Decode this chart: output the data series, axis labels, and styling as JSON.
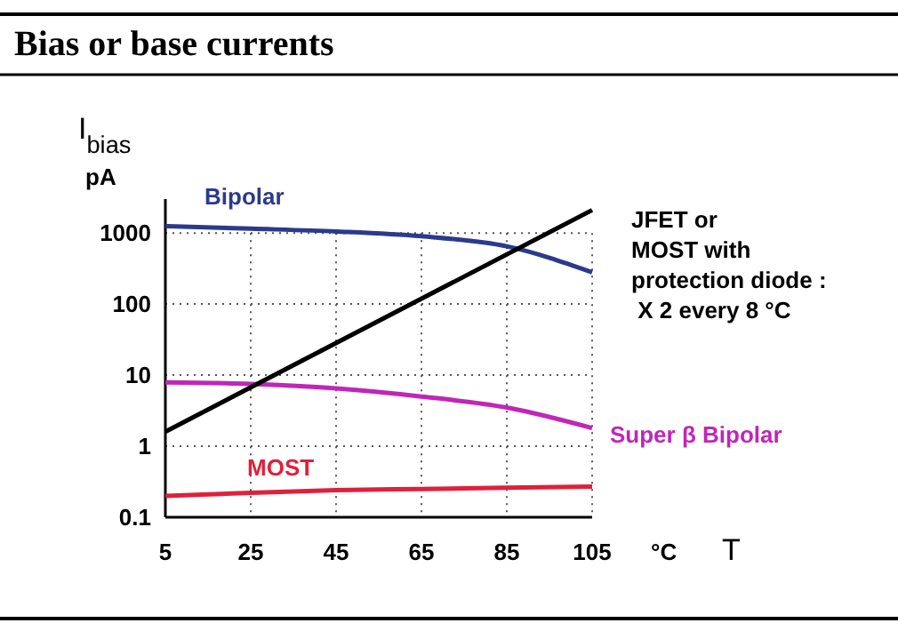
{
  "chart_data": {
    "type": "line",
    "title": "Bias or base currents",
    "ylabel": "I$_{bias}$\npA",
    "xlabel": "°C T",
    "x": [
      5,
      25,
      45,
      65,
      85,
      105
    ],
    "xlim": [
      5,
      105
    ],
    "xticks": [
      5,
      25,
      45,
      65,
      85,
      105
    ],
    "ylim": [
      0.1,
      3000
    ],
    "yticks": [
      0.1,
      1,
      10,
      100,
      1000
    ],
    "log": true,
    "grid": true,
    "marker": "none",
    "line_style": "solid",
    "series": [
      {
        "name": "Bipolar",
        "color": "#2b3a8c",
        "values": [
          1250,
          1150,
          1050,
          900,
          650,
          280
        ]
      },
      {
        "name": "Super β Bipolar",
        "color": "#c026b8",
        "values": [
          7.9,
          7.5,
          6.5,
          5,
          3.5,
          1.8
        ]
      },
      {
        "name": "MOST",
        "color": "#e0203a",
        "values": [
          0.2,
          0.22,
          0.24,
          0.25,
          0.26,
          0.27
        ]
      },
      {
        "name": "JFET or\nMOST with\nprotection diode :\n X 2 every 8 °C",
        "color": "#000000",
        "x": [
          5,
          105
        ],
        "values": [
          1.6,
          2100
        ]
      }
    ]
  }
}
